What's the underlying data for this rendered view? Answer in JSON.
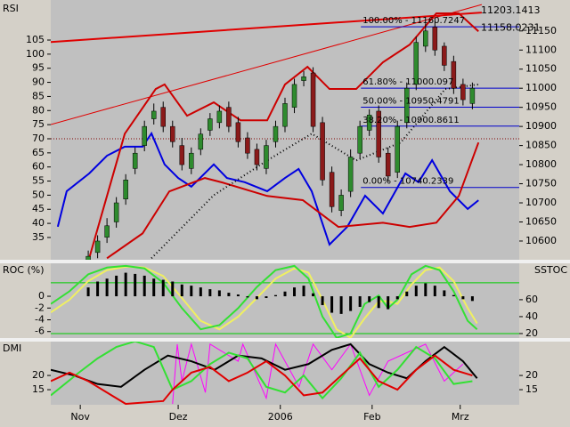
{
  "chart_data": [
    {
      "type": "candlestick",
      "title": "RSI",
      "ylim": [
        27.1,
        119.2
      ],
      "yticks": [
        35,
        40,
        45,
        50,
        55,
        60,
        65,
        70,
        75,
        80,
        85,
        90,
        95,
        100,
        105
      ],
      "y2lim": [
        10551,
        11231
      ],
      "y2ticks": [
        10600,
        10650,
        10700,
        10750,
        10800,
        10850,
        10900,
        10950,
        11000,
        11050,
        11100,
        11150
      ],
      "x": [
        8,
        10,
        12,
        14,
        16,
        18,
        20,
        22,
        24,
        26,
        28,
        30,
        32,
        34,
        36,
        38,
        40,
        42,
        44,
        46,
        48,
        50,
        52,
        54,
        56,
        58,
        60,
        62,
        64,
        66,
        68,
        70,
        72,
        74,
        76,
        78,
        80,
        82,
        84,
        86,
        88,
        90
      ],
      "open": [
        10520,
        10570,
        10610,
        10650,
        10710,
        10790,
        10850,
        10920,
        10950,
        10900,
        10850,
        10790,
        10840,
        10890,
        10910,
        10950,
        10910,
        10870,
        10840,
        10790,
        10860,
        10900,
        10950,
        11020,
        11040,
        10910,
        10780,
        10680,
        10730,
        10830,
        10890,
        10940,
        10830,
        10780,
        10910,
        11010,
        11110,
        11160,
        11110,
        11070,
        11010,
        10960
      ],
      "high": [
        10575,
        10615,
        10660,
        10715,
        10775,
        10845,
        10915,
        10960,
        10965,
        10915,
        10870,
        10845,
        10895,
        10935,
        10955,
        10965,
        10925,
        10885,
        10855,
        10865,
        10915,
        10975,
        11025,
        11045,
        11055,
        10925,
        10795,
        10735,
        10840,
        10915,
        10945,
        10955,
        10845,
        10915,
        11015,
        11135,
        11170,
        11175,
        11120,
        11085,
        11025,
        11015
      ],
      "low": [
        10505,
        10555,
        10595,
        10635,
        10695,
        10775,
        10835,
        10905,
        10885,
        10845,
        10785,
        10775,
        10825,
        10875,
        10895,
        10885,
        10845,
        10815,
        10785,
        10775,
        10845,
        10885,
        10935,
        11005,
        10885,
        10745,
        10675,
        10665,
        10715,
        10815,
        10875,
        10805,
        10755,
        10765,
        10895,
        10995,
        11095,
        11085,
        11045,
        10985,
        10955,
        10945
      ],
      "close": [
        10560,
        10600,
        10640,
        10700,
        10760,
        10830,
        10900,
        10940,
        10900,
        10860,
        10800,
        10830,
        10880,
        10920,
        10940,
        10900,
        10860,
        10830,
        10800,
        10850,
        10900,
        10960,
        11010,
        11030,
        10900,
        10760,
        10690,
        10720,
        10820,
        10900,
        10930,
        10820,
        10770,
        10900,
        11000,
        11120,
        11150,
        11100,
        11060,
        11000,
        10970,
        11000
      ],
      "up_color": "#2e8b2e",
      "down_color": "#8b1a1a",
      "series": [
        {
          "color": "#0000e0",
          "x": [
            1.5,
            3.4,
            8.2,
            12,
            15.8,
            19.6,
            21.5,
            24.3,
            27.2,
            30,
            34.8,
            37.6,
            41.4,
            46.2,
            50,
            52.9,
            55.7,
            59.5,
            63.3,
            67.1,
            70.9,
            75.7,
            78.5,
            81.4,
            85.2,
            89,
            91.3
          ],
          "values": [
            38.8,
            51.4,
            57.7,
            64,
            67.2,
            67.2,
            71.9,
            60.9,
            56.1,
            53,
            60.9,
            56.1,
            54.6,
            51.4,
            56.1,
            59.3,
            51.4,
            32.5,
            38.8,
            49.8,
            43.5,
            57.7,
            54.6,
            62.4,
            51.4,
            45.1,
            48.2
          ]
        },
        {
          "color": "#cc0000",
          "axis": "y2",
          "x": [
            8.2,
            15.8,
            22.4,
            24.3,
            29.1,
            34.8,
            40.5,
            46.2,
            50,
            54.8,
            59.5,
            65.2,
            70.9,
            76.6,
            82.3,
            87.1,
            91.3
          ],
          "values": [
            10555,
            10881,
            10998,
            11010,
            10928,
            10963,
            10916,
            10916,
            11010,
            11056,
            10998,
            10998,
            11068,
            11114,
            11196,
            11196,
            11149
          ]
        },
        {
          "color": "#cc0000",
          "axis": "y2",
          "x": [
            12,
            19.6,
            25.3,
            32.9,
            36.7,
            46.2,
            53.8,
            61.4,
            70.9,
            76.6,
            82.3,
            87.1,
            91.3
          ],
          "values": [
            10555,
            10620,
            10730,
            10765,
            10753,
            10718,
            10707,
            10637,
            10648,
            10637,
            10648,
            10718,
            10858
          ]
        },
        {
          "color": "#000000",
          "dash": true,
          "axis": "y2",
          "x": [
            21.5,
            34.8,
            46.2,
            55.7,
            65.2,
            74.7,
            84.2,
            91.3
          ],
          "values": [
            10555,
            10720,
            10811,
            10881,
            10811,
            10858,
            10998,
            11010
          ]
        }
      ],
      "trendlines": [
        {
          "color": "#e00000",
          "width": 2,
          "x": [
            0,
            92
          ],
          "values": [
            11121,
            11198
          ]
        },
        {
          "color": "#e00000",
          "width": 1,
          "x": [
            0,
            92
          ],
          "values": [
            10905,
            11219
          ]
        }
      ],
      "hlines": [
        {
          "value": 70,
          "color": "#800000",
          "dash": true
        }
      ],
      "levels_start": 66.2,
      "levels_color": "#0000cc",
      "levels": [
        {
          "value": 11160.7247,
          "label": "100.00% - 11160.7247"
        },
        {
          "value": 11000.097,
          "label": "61.80% - 11000.097"
        },
        {
          "value": 10950.4791,
          "label": "50.00% - 10950.4791"
        },
        {
          "value": 10900.8611,
          "label": "38.20% - 10900.8611"
        },
        {
          "value": 10740.2339,
          "label": "0.00% - 10740.2339"
        }
      ],
      "annotations_color": "#e00000",
      "annotations": [
        {
          "value": 11203.1413,
          "label": "11203.1413"
        },
        {
          "value": 11158.0231,
          "label": "11158.0231"
        }
      ]
    },
    {
      "type": "bar",
      "title": "ROC (%)",
      "y2_title": "SSTOC",
      "ylim": [
        -7.1,
        5.6
      ],
      "yticks": [
        -6,
        -4,
        -2,
        0
      ],
      "y2lim": [
        14.7,
        103
      ],
      "y2ticks": [
        20,
        40,
        60
      ],
      "x": [
        8,
        10,
        12,
        14,
        16,
        18,
        20,
        22,
        24,
        26,
        28,
        30,
        32,
        34,
        36,
        38,
        40,
        42,
        44,
        46,
        48,
        50,
        52,
        54,
        56,
        58,
        60,
        62,
        64,
        66,
        68,
        70,
        72,
        74,
        76,
        78,
        80,
        82,
        84,
        86,
        88,
        90
      ],
      "values": [
        1.5,
        2.5,
        3,
        3.5,
        4,
        3.8,
        3.5,
        3,
        2.8,
        2.5,
        2,
        1.8,
        1.5,
        1.2,
        1,
        0.6,
        0.3,
        -0.2,
        -0.5,
        -0.3,
        0.2,
        0.8,
        1.5,
        1.8,
        0.5,
        -1.5,
        -2.8,
        -3,
        -2.5,
        -1.8,
        -1,
        -2,
        -2.2,
        -0.5,
        0.8,
        1.8,
        2.2,
        1.8,
        1,
        0.2,
        -0.5,
        -0.8
      ],
      "color": "#000000",
      "hlines": [
        {
          "value": 80,
          "color": "#00cc00",
          "axis": "y2"
        },
        {
          "value": 20,
          "color": "#00cc00",
          "axis": "y2"
        }
      ],
      "series": [
        {
          "color": "#f0f060",
          "axis": "y2",
          "x": [
            0,
            4,
            8,
            12,
            16,
            20,
            24,
            28,
            32,
            36,
            40,
            44,
            48,
            52,
            55,
            58,
            61,
            64,
            67,
            70,
            72,
            74,
            77,
            80,
            83,
            86,
            89,
            91
          ],
          "values": [
            45,
            60,
            82,
            95,
            99,
            98,
            88,
            62,
            35,
            25,
            40,
            62,
            85,
            97,
            92,
            60,
            25,
            15,
            38,
            58,
            58,
            55,
            78,
            95,
            98,
            82,
            50,
            32
          ]
        },
        {
          "color": "#33e033",
          "axis": "y2",
          "x": [
            0,
            4,
            8,
            12,
            16,
            20,
            24,
            28,
            32,
            36,
            40,
            44,
            48,
            52,
            55,
            58,
            61,
            64,
            67,
            70,
            72,
            74,
            77,
            80,
            83,
            86,
            89,
            91
          ],
          "values": [
            55,
            70,
            90,
            98,
            100,
            97,
            80,
            50,
            25,
            30,
            50,
            75,
            95,
            100,
            85,
            40,
            15,
            20,
            55,
            65,
            50,
            60,
            90,
            100,
            95,
            70,
            35,
            25
          ]
        }
      ]
    },
    {
      "type": "line",
      "title": "DMI",
      "ylim": [
        9.7,
        31.9
      ],
      "yticks": [
        15,
        20
      ],
      "y2lim": [
        9.7,
        31.9
      ],
      "y2ticks": [
        15,
        20
      ],
      "xlim": [
        0,
        100
      ],
      "xticks": [
        {
          "value": 6.3,
          "label": "Nov"
        },
        {
          "value": 27.2,
          "label": "Dez"
        },
        {
          "value": 49,
          "label": "2006"
        },
        {
          "value": 68.6,
          "label": "Feb"
        },
        {
          "value": 87.4,
          "label": "Mrz"
        }
      ],
      "series": [
        {
          "color": "#ff00ff",
          "width": 1,
          "x": [
            26,
            27,
            28,
            30,
            33,
            34,
            40,
            41,
            46,
            48,
            53,
            56,
            60,
            64,
            68,
            72,
            80,
            84,
            88
          ],
          "values": [
            10,
            31,
            18,
            31,
            14,
            31,
            25,
            31,
            12,
            31,
            16,
            31,
            22,
            31,
            13,
            25,
            31,
            18,
            24
          ]
        },
        {
          "color": "#000000",
          "width": 2,
          "x": [
            0,
            5,
            10,
            15,
            20,
            25,
            30,
            35,
            40,
            45,
            50,
            55,
            60,
            64,
            68,
            72,
            76,
            80,
            84,
            88,
            91
          ],
          "values": [
            22,
            20,
            17,
            16,
            22,
            27,
            25,
            22,
            27,
            26,
            22,
            24,
            29,
            31,
            24,
            21,
            19,
            25,
            30,
            25,
            19
          ]
        },
        {
          "color": "#33e033",
          "width": 2,
          "x": [
            0,
            6,
            10,
            14,
            18,
            22,
            26,
            30,
            34,
            38,
            42,
            46,
            50,
            54,
            58,
            62,
            66,
            70,
            74,
            78,
            82,
            86,
            90
          ],
          "values": [
            13,
            21,
            26,
            30,
            32,
            30,
            15,
            18,
            24,
            28,
            26,
            16,
            14,
            20,
            12,
            19,
            28,
            16,
            22,
            30,
            26,
            17,
            18
          ]
        },
        {
          "color": "#e00000",
          "width": 2,
          "x": [
            0,
            4,
            8,
            12,
            16,
            24,
            26,
            30,
            34,
            38,
            42,
            46,
            50,
            54,
            58,
            62,
            66,
            70,
            74,
            78,
            82,
            86,
            90
          ],
          "values": [
            18,
            21,
            18,
            14,
            10,
            11,
            15,
            21,
            23,
            18,
            21,
            25,
            20,
            13,
            14,
            20,
            26,
            18,
            15,
            22,
            27,
            22,
            20
          ]
        }
      ]
    }
  ]
}
